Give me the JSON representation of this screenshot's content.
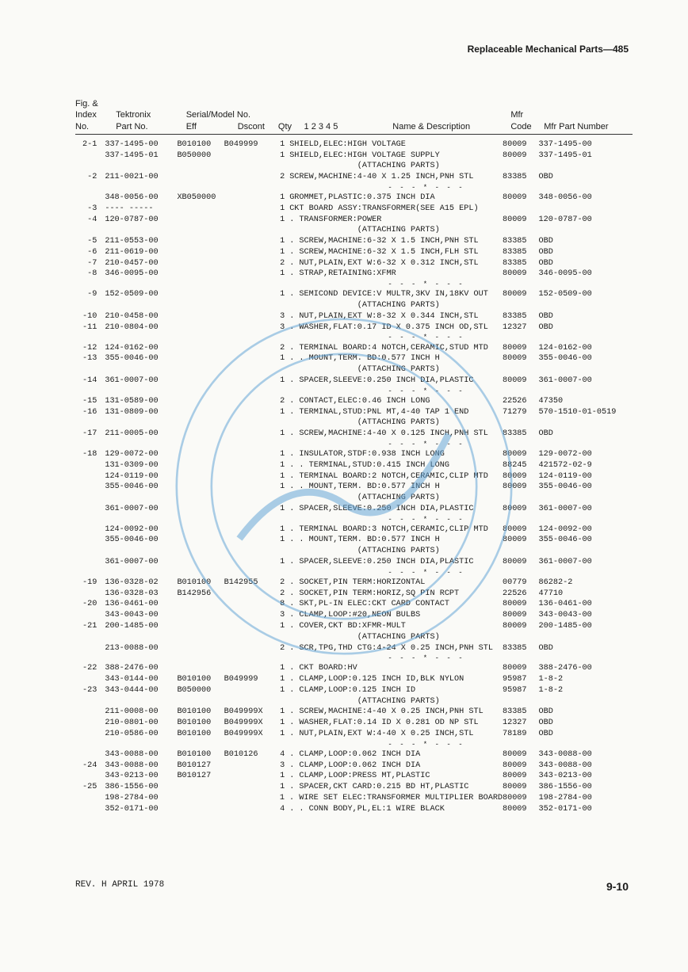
{
  "header": "Replaceable Mechanical Parts—485",
  "columns": {
    "c1a": "Fig. &",
    "c1b": "Index",
    "c1c": "No.",
    "c2a": "Tektronix",
    "c2b": "Part No.",
    "c3a": "Serial/Model No.",
    "c3b": "Eff",
    "c3c": "Dscont",
    "c5": "Qty",
    "c6": "1 2 3 4 5",
    "c7": "Name & Description",
    "c8a": "Mfr",
    "c8b": "Code",
    "c9": "Mfr Part Number"
  },
  "rows": [
    {
      "idx": "2-1",
      "part": "337-1495-00",
      "eff": "B010100",
      "dsc": "B049999",
      "qty": "1",
      "name": "SHIELD,ELEC:HIGH VOLTAGE",
      "mfr": "80009",
      "mpn": "337-1495-00"
    },
    {
      "idx": "",
      "part": "337-1495-01",
      "eff": "B050000",
      "dsc": "",
      "qty": "1",
      "name": "SHIELD,ELEC:HIGH VOLTAGE SUPPLY",
      "mfr": "80009",
      "mpn": "337-1495-01"
    },
    {
      "idx": "",
      "part": "",
      "eff": "",
      "dsc": "",
      "qty": "",
      "name": "              (ATTACHING PARTS)",
      "mfr": "",
      "mpn": ""
    },
    {
      "idx": "-2",
      "part": "211-0021-00",
      "eff": "",
      "dsc": "",
      "qty": "2",
      "name": "SCREW,MACHINE:4-40 X 1.25 INCH,PNH STL",
      "mfr": "83385",
      "mpn": "OBD"
    },
    {
      "sep": "- - - * - - -"
    },
    {
      "idx": "",
      "part": "348-0056-00",
      "eff": "XB050000",
      "dsc": "",
      "qty": "1",
      "name": "GROMMET,PLASTIC:0.375 INCH DIA",
      "mfr": "80009",
      "mpn": "348-0056-00"
    },
    {
      "idx": "-3",
      "part": "---- -----",
      "eff": "",
      "dsc": "",
      "qty": "1",
      "name": "CKT BOARD ASSY:TRANSFORMER(SEE A15 EPL)",
      "mfr": "",
      "mpn": ""
    },
    {
      "idx": "-4",
      "part": "120-0787-00",
      "eff": "",
      "dsc": "",
      "qty": "1",
      "name": ". TRANSFORMER:POWER",
      "mfr": "80009",
      "mpn": "120-0787-00"
    },
    {
      "idx": "",
      "part": "",
      "eff": "",
      "dsc": "",
      "qty": "",
      "name": "              (ATTACHING PARTS)",
      "mfr": "",
      "mpn": ""
    },
    {
      "idx": "-5",
      "part": "211-0553-00",
      "eff": "",
      "dsc": "",
      "qty": "1",
      "name": ". SCREW,MACHINE:6-32 X 1.5 INCH,PNH STL",
      "mfr": "83385",
      "mpn": "OBD"
    },
    {
      "idx": "-6",
      "part": "211-0619-00",
      "eff": "",
      "dsc": "",
      "qty": "1",
      "name": ". SCREW,MACHINE:6-32 X 1.5 INCH,FLH STL",
      "mfr": "83385",
      "mpn": "OBD"
    },
    {
      "idx": "-7",
      "part": "210-0457-00",
      "eff": "",
      "dsc": "",
      "qty": "2",
      "name": ". NUT,PLAIN,EXT W:6-32 X 0.312 INCH,STL",
      "mfr": "83385",
      "mpn": "OBD"
    },
    {
      "idx": "-8",
      "part": "346-0095-00",
      "eff": "",
      "dsc": "",
      "qty": "1",
      "name": ". STRAP,RETAINING:XFMR",
      "mfr": "80009",
      "mpn": "346-0095-00"
    },
    {
      "sep": "- - - * - - -"
    },
    {
      "idx": "-9",
      "part": "152-0509-00",
      "eff": "",
      "dsc": "",
      "qty": "1",
      "name": ". SEMICOND DEVICE:V MULTR,3KV IN,18KV OUT",
      "mfr": "80009",
      "mpn": "152-0509-00"
    },
    {
      "idx": "",
      "part": "",
      "eff": "",
      "dsc": "",
      "qty": "",
      "name": "              (ATTACHING PARTS)",
      "mfr": "",
      "mpn": ""
    },
    {
      "idx": "-10",
      "part": "210-0458-00",
      "eff": "",
      "dsc": "",
      "qty": "3",
      "name": ". NUT,PLAIN,EXT W:8-32 X 0.344 INCH,STL",
      "mfr": "83385",
      "mpn": "OBD"
    },
    {
      "idx": "-11",
      "part": "210-0804-00",
      "eff": "",
      "dsc": "",
      "qty": "3",
      "name": ". WASHER,FLAT:0.17 ID X 0.375 INCH OD,STL",
      "mfr": "12327",
      "mpn": "OBD"
    },
    {
      "sep": "- - - * - - -"
    },
    {
      "idx": "-12",
      "part": "124-0162-00",
      "eff": "",
      "dsc": "",
      "qty": "2",
      "name": ". TERMINAL BOARD:4 NOTCH,CERAMIC,STUD MTD",
      "mfr": "80009",
      "mpn": "124-0162-00"
    },
    {
      "idx": "-13",
      "part": "355-0046-00",
      "eff": "",
      "dsc": "",
      "qty": "1",
      "name": ". . MOUNT,TERM. BD:0.577 INCH H",
      "mfr": "80009",
      "mpn": "355-0046-00"
    },
    {
      "idx": "",
      "part": "",
      "eff": "",
      "dsc": "",
      "qty": "",
      "name": "              (ATTACHING PARTS)",
      "mfr": "",
      "mpn": ""
    },
    {
      "idx": "-14",
      "part": "361-0007-00",
      "eff": "",
      "dsc": "",
      "qty": "1",
      "name": ". SPACER,SLEEVE:0.250 INCH DIA,PLASTIC",
      "mfr": "80009",
      "mpn": "361-0007-00"
    },
    {
      "sep": "- - - * - - -"
    },
    {
      "idx": "-15",
      "part": "131-0589-00",
      "eff": "",
      "dsc": "",
      "qty": "2",
      "name": ". CONTACT,ELEC:0.46 INCH LONG",
      "mfr": "22526",
      "mpn": "47350"
    },
    {
      "idx": "-16",
      "part": "131-0809-00",
      "eff": "",
      "dsc": "",
      "qty": "1",
      "name": ". TERMINAL,STUD:PNL MT,4-40 TAP 1 END",
      "mfr": "71279",
      "mpn": "570-1510-01-0519"
    },
    {
      "idx": "",
      "part": "",
      "eff": "",
      "dsc": "",
      "qty": "",
      "name": "              (ATTACHING PARTS)",
      "mfr": "",
      "mpn": ""
    },
    {
      "idx": "-17",
      "part": "211-0005-00",
      "eff": "",
      "dsc": "",
      "qty": "1",
      "name": ". SCREW,MACHINE:4-40 X 0.125 INCH,PNH STL",
      "mfr": "83385",
      "mpn": "OBD"
    },
    {
      "sep": "- - - * - - -"
    },
    {
      "idx": "-18",
      "part": "129-0072-00",
      "eff": "",
      "dsc": "",
      "qty": "1",
      "name": ". INSULATOR,STDF:0.938 INCH LONG",
      "mfr": "80009",
      "mpn": "129-0072-00"
    },
    {
      "idx": "",
      "part": "131-0309-00",
      "eff": "",
      "dsc": "",
      "qty": "1",
      "name": ". . TERMINAL,STUD:0.415 INCH LONG",
      "mfr": "88245",
      "mpn": "421572-02-9"
    },
    {
      "idx": "",
      "part": "124-0119-00",
      "eff": "",
      "dsc": "",
      "qty": "1",
      "name": ". TERMINAL BOARD:2 NOTCH,CERAMIC,CLIP MTD",
      "mfr": "80009",
      "mpn": "124-0119-00"
    },
    {
      "idx": "",
      "part": "355-0046-00",
      "eff": "",
      "dsc": "",
      "qty": "1",
      "name": ". . MOUNT,TERM. BD:0.577 INCH H",
      "mfr": "80009",
      "mpn": "355-0046-00"
    },
    {
      "idx": "",
      "part": "",
      "eff": "",
      "dsc": "",
      "qty": "",
      "name": "              (ATTACHING PARTS)",
      "mfr": "",
      "mpn": ""
    },
    {
      "idx": "",
      "part": "361-0007-00",
      "eff": "",
      "dsc": "",
      "qty": "1",
      "name": ". SPACER,SLEEVE:0.250 INCH DIA,PLASTIC",
      "mfr": "80009",
      "mpn": "361-0007-00"
    },
    {
      "sep": "- - - * - - -"
    },
    {
      "idx": "",
      "part": "124-0092-00",
      "eff": "",
      "dsc": "",
      "qty": "1",
      "name": ". TERMINAL BOARD:3 NOTCH,CERAMIC,CLIP MTD",
      "mfr": "80009",
      "mpn": "124-0092-00"
    },
    {
      "idx": "",
      "part": "355-0046-00",
      "eff": "",
      "dsc": "",
      "qty": "1",
      "name": ". . MOUNT,TERM. BD:0.577 INCH H",
      "mfr": "80009",
      "mpn": "355-0046-00"
    },
    {
      "idx": "",
      "part": "",
      "eff": "",
      "dsc": "",
      "qty": "",
      "name": "              (ATTACHING PARTS)",
      "mfr": "",
      "mpn": ""
    },
    {
      "idx": "",
      "part": "361-0007-00",
      "eff": "",
      "dsc": "",
      "qty": "1",
      "name": ". SPACER,SLEEVE:0.250 INCH DIA,PLASTIC",
      "mfr": "80009",
      "mpn": "361-0007-00"
    },
    {
      "sep": "- - - * - - -"
    },
    {
      "idx": "-19",
      "part": "136-0328-02",
      "eff": "B010100",
      "dsc": "B142955",
      "qty": "2",
      "name": ". SOCKET,PIN TERM:HORIZONTAL",
      "mfr": "00779",
      "mpn": "86282-2"
    },
    {
      "idx": "",
      "part": "136-0328-03",
      "eff": "B142956",
      "dsc": "",
      "qty": "2",
      "name": ". SOCKET,PIN TERM:HORIZ,SQ PIN RCPT",
      "mfr": "22526",
      "mpn": "47710"
    },
    {
      "idx": "-20",
      "part": "136-0461-00",
      "eff": "",
      "dsc": "",
      "qty": "8",
      "name": ". SKT,PL-IN ELEC:CKT CARD CONTACT",
      "mfr": "80009",
      "mpn": "136-0461-00"
    },
    {
      "idx": "",
      "part": "343-0043-00",
      "eff": "",
      "dsc": "",
      "qty": "3",
      "name": ". CLAMP,LOOP:#20,NEON BULBS",
      "mfr": "80009",
      "mpn": "343-0043-00"
    },
    {
      "idx": "-21",
      "part": "200-1485-00",
      "eff": "",
      "dsc": "",
      "qty": "1",
      "name": ". COVER,CKT BD:XFMR-MULT",
      "mfr": "80009",
      "mpn": "200-1485-00"
    },
    {
      "idx": "",
      "part": "",
      "eff": "",
      "dsc": "",
      "qty": "",
      "name": "              (ATTACHING PARTS)",
      "mfr": "",
      "mpn": ""
    },
    {
      "idx": "",
      "part": "213-0088-00",
      "eff": "",
      "dsc": "",
      "qty": "2",
      "name": ". SCR,TPG,THD CTG:4-24 X 0.25 INCH,PNH STL",
      "mfr": "83385",
      "mpn": "OBD"
    },
    {
      "sep": "- - - * - - -"
    },
    {
      "idx": "-22",
      "part": "388-2476-00",
      "eff": "",
      "dsc": "",
      "qty": "1",
      "name": ". CKT BOARD:HV",
      "mfr": "80009",
      "mpn": "388-2476-00"
    },
    {
      "idx": "",
      "part": "343-0144-00",
      "eff": "B010100",
      "dsc": "B049999",
      "qty": "1",
      "name": ". CLAMP,LOOP:0.125 INCH ID,BLK NYLON",
      "mfr": "95987",
      "mpn": "1-8-2"
    },
    {
      "idx": "-23",
      "part": "343-0444-00",
      "eff": "B050000",
      "dsc": "",
      "qty": "1",
      "name": ". CLAMP,LOOP:0.125 INCH ID",
      "mfr": "95987",
      "mpn": "1-8-2"
    },
    {
      "idx": "",
      "part": "",
      "eff": "",
      "dsc": "",
      "qty": "",
      "name": "              (ATTACHING PARTS)",
      "mfr": "",
      "mpn": ""
    },
    {
      "idx": "",
      "part": "211-0008-00",
      "eff": "B010100",
      "dsc": "B049999X",
      "qty": "1",
      "name": ". SCREW,MACHINE:4-40 X 0.25 INCH,PNH STL",
      "mfr": "83385",
      "mpn": "OBD"
    },
    {
      "idx": "",
      "part": "210-0801-00",
      "eff": "B010100",
      "dsc": "B049999X",
      "qty": "1",
      "name": ". WASHER,FLAT:0.14 ID X 0.281 OD NP STL",
      "mfr": "12327",
      "mpn": "OBD"
    },
    {
      "idx": "",
      "part": "210-0586-00",
      "eff": "B010100",
      "dsc": "B049999X",
      "qty": "1",
      "name": ". NUT,PLAIN,EXT W:4-40 X 0.25 INCH,STL",
      "mfr": "78189",
      "mpn": "OBD"
    },
    {
      "sep": "- - - * - - -"
    },
    {
      "idx": "",
      "part": "343-0088-00",
      "eff": "B010100",
      "dsc": "B010126",
      "qty": "4",
      "name": ". CLAMP,LOOP:0.062 INCH DIA",
      "mfr": "80009",
      "mpn": "343-0088-00"
    },
    {
      "idx": "-24",
      "part": "343-0088-00",
      "eff": "B010127",
      "dsc": "",
      "qty": "3",
      "name": ". CLAMP,LOOP:0.062 INCH DIA",
      "mfr": "80009",
      "mpn": "343-0088-00"
    },
    {
      "idx": "",
      "part": "343-0213-00",
      "eff": "B010127",
      "dsc": "",
      "qty": "1",
      "name": ". CLAMP,LOOP:PRESS MT,PLASTIC",
      "mfr": "80009",
      "mpn": "343-0213-00"
    },
    {
      "idx": "-25",
      "part": "386-1556-00",
      "eff": "",
      "dsc": "",
      "qty": "1",
      "name": ". SPACER,CKT CARD:0.215 BD HT,PLASTIC",
      "mfr": "80009",
      "mpn": "386-1556-00"
    },
    {
      "idx": "",
      "part": "198-2784-00",
      "eff": "",
      "dsc": "",
      "qty": "1",
      "name": ". WIRE SET ELEC:TRANSFORMER MULTIPLIER BOARD",
      "mfr": "80009",
      "mpn": "198-2784-00"
    },
    {
      "idx": "",
      "part": "352-0171-00",
      "eff": "",
      "dsc": "",
      "qty": "4",
      "name": ". . CONN BODY,PL,EL:1 WIRE BLACK",
      "mfr": "80009",
      "mpn": "352-0171-00"
    }
  ],
  "footer": {
    "rev": "REV. H APRIL 1978",
    "page": "9-10"
  },
  "watermark": {
    "stroke": "#5a9fd4",
    "opacity": 0.5
  }
}
